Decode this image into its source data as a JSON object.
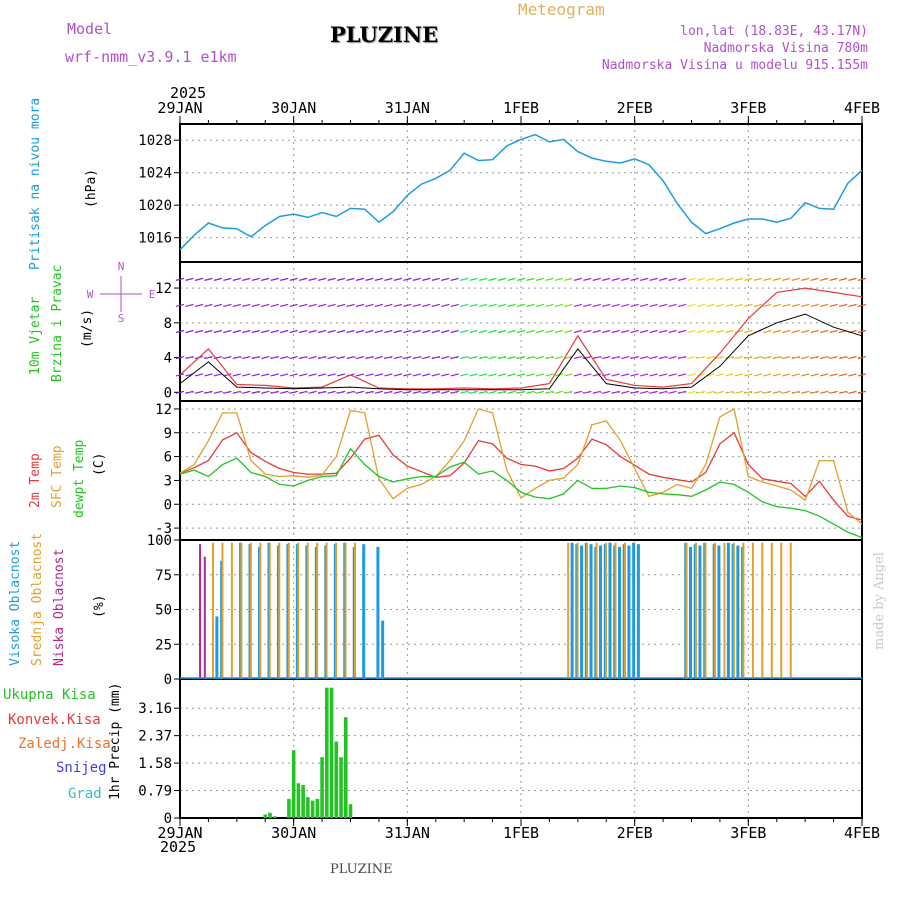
{
  "header": {
    "model_label": "Model",
    "model_name": "wrf-nmm_v3.9.1 e1km",
    "station": "PLUZINE",
    "chart_title": "Meteogram",
    "lonlat": "lon,lat (18.83E, 43.17N)",
    "elevation": "Nadmorska Visina 780m",
    "model_elevation": "Nadmorska Visina u modelu 915.155m",
    "footer_station": "PLUZINE",
    "watermark": "made by Angel"
  },
  "time_axis": {
    "year": "2025",
    "ticks": [
      "29JAN",
      "30JAN",
      "31JAN",
      "1FEB",
      "2FEB",
      "3FEB",
      "4FEB"
    ],
    "range_hours": [
      0,
      144
    ]
  },
  "colors": {
    "pressure": "#1e9be0",
    "temp2m": "#e83a3a",
    "sfc_temp": "#e0a030",
    "dewpt": "#22c422",
    "cloud_high": "#1e9be0",
    "cloud_mid": "#e0a030",
    "cloud_low": "#b0288c",
    "precip_total": "#22c422",
    "wind_label": "#22c422",
    "wind_rose": "#b050d0",
    "wind_speed": "#000000",
    "gust": "#e83a3a"
  },
  "panels": {
    "pressure": {
      "ylabel_1": "Pritisak na nivou mora",
      "ylabel_2": "(hPa)",
      "ticks": [
        "1016",
        "1020",
        "1024",
        "1028"
      ]
    },
    "wind": {
      "ylabel_1": "10m Vjetar",
      "ylabel_2": "Brzina i Pravac",
      "ylabel_3": "(m/s)",
      "ticks": [
        "0",
        "4",
        "8",
        "12"
      ],
      "rose": {
        "n": "N",
        "s": "S",
        "w": "W",
        "e": "E"
      }
    },
    "temperature": {
      "ylabel_1": "2m Temp",
      "ylabel_2": "SFC Temp",
      "ylabel_3": "dewpt Temp",
      "ylabel_4": "(C)",
      "ticks": [
        "-3",
        "0",
        "3",
        "6",
        "9",
        "12"
      ]
    },
    "cloud": {
      "ylabel_1": "Visoka Oblacnost",
      "ylabel_2": "Srednja Oblacnost",
      "ylabel_3": "Niska Oblacnost",
      "ylabel_4": "(%)",
      "ticks": [
        "0",
        "25",
        "50",
        "75",
        "100"
      ]
    },
    "precip": {
      "legend_total": "Ukupna Kisa",
      "legend_conv": "Konvek.Kisa",
      "legend_frozen": "Zaledj.Kisa",
      "legend_snow": "Snijeg",
      "legend_hail": "Grad",
      "ylabel": "1hr Precip (mm)",
      "ticks": [
        "0",
        "0.79",
        "1.58",
        "2.37",
        "3.16"
      ]
    }
  },
  "chart_data": [
    {
      "type": "line",
      "title": "",
      "ylabel": "Pritisak na nivou mora (hPa)",
      "ylim": [
        1013,
        1030
      ],
      "x_hours": [
        0,
        3,
        6,
        9,
        12,
        15,
        18,
        21,
        24,
        27,
        30,
        33,
        36,
        39,
        42,
        45,
        48,
        51,
        54,
        57,
        60,
        63,
        66,
        69,
        72,
        75,
        78,
        81,
        84,
        87,
        90,
        93,
        96,
        99,
        102,
        105,
        108,
        111,
        114,
        117,
        120,
        123,
        126,
        129,
        132,
        135,
        138,
        141,
        144
      ],
      "series": [
        {
          "name": "",
          "values": [
            1014.5,
            1016.3,
            1017.8,
            1017.2,
            1017.1,
            1016.1,
            1017.5,
            1018.6,
            1018.9,
            1018.5,
            1019.1,
            1018.6,
            1019.6,
            1019.5,
            1017.9,
            1019.2,
            1021.2,
            1022.6,
            1023.3,
            1024.3,
            1026.4,
            1025.5,
            1025.6,
            1027.3,
            1028.1,
            1028.7,
            1027.8,
            1028.1,
            1026.6,
            1025.8,
            1025.4,
            1025.2,
            1025.7,
            1025.0,
            1023.0,
            1020.2,
            1017.9,
            1016.5,
            1017.1,
            1017.8,
            1018.3,
            1018.3,
            1017.9,
            1018.4,
            1020.3,
            1019.6,
            1019.5,
            1022.7,
            1024.3
          ]
        }
      ]
    },
    {
      "type": "line",
      "title": "",
      "ylabel": "10m Vjetar Brzina i Pravac (m/s)",
      "ylim": [
        -1,
        15
      ],
      "x_hours": [
        0,
        6,
        12,
        18,
        24,
        30,
        36,
        42,
        48,
        54,
        60,
        66,
        72,
        78,
        84,
        90,
        96,
        102,
        108,
        114,
        120,
        126,
        132,
        138,
        144
      ],
      "series": [
        {
          "name": "",
          "values": [
            1.0,
            3.5,
            0.6,
            0.5,
            0.4,
            0.5,
            0.6,
            0.4,
            0.3,
            0.3,
            0.3,
            0.3,
            0.3,
            0.4,
            5.0,
            1.0,
            0.5,
            0.4,
            0.6,
            3.0,
            6.5,
            8.0,
            9.0,
            7.5,
            6.5
          ]
        },
        {
          "name": "",
          "values": [
            2.0,
            5.0,
            0.9,
            0.8,
            0.5,
            0.6,
            2.0,
            0.5,
            0.4,
            0.4,
            0.5,
            0.4,
            0.5,
            1.0,
            6.5,
            1.5,
            0.8,
            0.6,
            1.0,
            4.5,
            8.5,
            11.5,
            12.0,
            11.5,
            11.0
          ]
        }
      ]
    },
    {
      "type": "line",
      "title": "",
      "ylabel": "(C)",
      "ylim": [
        -4.5,
        13
      ],
      "x_hours": [
        0,
        3,
        6,
        9,
        12,
        15,
        18,
        21,
        24,
        27,
        30,
        33,
        36,
        39,
        42,
        45,
        48,
        51,
        54,
        57,
        60,
        63,
        66,
        69,
        72,
        75,
        78,
        81,
        84,
        87,
        90,
        93,
        96,
        99,
        102,
        105,
        108,
        111,
        114,
        117,
        120,
        123,
        126,
        129,
        132,
        135,
        138,
        141,
        144
      ],
      "series": [
        {
          "name": "2m Temp",
          "values": [
            3.9,
            4.6,
            5.5,
            8.1,
            9.0,
            6.5,
            5.4,
            4.5,
            4.0,
            3.8,
            3.8,
            3.9,
            5.8,
            8.2,
            8.7,
            6.2,
            4.8,
            4.1,
            3.4,
            3.6,
            5.2,
            8.0,
            7.6,
            5.8,
            5.0,
            4.8,
            4.2,
            4.5,
            5.8,
            8.2,
            7.5,
            6.0,
            4.9,
            3.8,
            3.4,
            3.1,
            2.8,
            4.0,
            7.6,
            9.0,
            5.0,
            3.2,
            2.9,
            2.6,
            1.0,
            2.9,
            0.5,
            -1.5,
            -2.0
          ]
        },
        {
          "name": "SFC Temp",
          "values": [
            3.9,
            5.0,
            8.0,
            11.5,
            11.5,
            5.5,
            3.8,
            3.5,
            3.6,
            3.4,
            3.7,
            6.0,
            11.8,
            11.5,
            3.2,
            0.7,
            2.0,
            2.5,
            3.5,
            5.5,
            8.0,
            12.0,
            11.5,
            4.3,
            0.8,
            2.0,
            3.0,
            3.3,
            5.0,
            10.0,
            10.5,
            8.0,
            4.5,
            1.0,
            1.5,
            2.5,
            2.0,
            5.0,
            11.0,
            12.0,
            3.5,
            2.8,
            2.3,
            1.8,
            0.5,
            5.5,
            5.5,
            -1.0,
            -2.5
          ]
        },
        {
          "name": "dewpt Temp",
          "values": [
            3.8,
            4.3,
            3.5,
            5.0,
            5.8,
            4.0,
            3.5,
            2.5,
            2.3,
            3.0,
            3.5,
            3.6,
            7.0,
            5.0,
            3.5,
            2.8,
            3.2,
            3.5,
            3.5,
            4.7,
            5.3,
            3.8,
            4.2,
            3.0,
            1.5,
            0.9,
            0.7,
            1.3,
            3.0,
            2.0,
            2.0,
            2.3,
            2.1,
            1.5,
            1.3,
            1.2,
            1.0,
            1.8,
            2.8,
            2.5,
            1.5,
            0.3,
            -0.3,
            -0.5,
            -0.8,
            -1.5,
            -2.5,
            -3.5,
            -4.2
          ]
        }
      ]
    },
    {
      "type": "bar",
      "title": "",
      "ylabel": "(%)",
      "ylim": [
        0,
        100
      ],
      "x_hours": [
        4,
        5,
        6,
        7,
        8,
        9,
        10,
        11,
        12,
        13,
        14,
        15,
        16,
        17,
        18,
        19,
        20,
        21,
        22,
        23,
        24,
        25,
        26,
        27,
        28,
        29,
        30,
        31,
        32,
        33,
        34,
        35,
        36,
        37,
        38,
        39,
        40,
        41,
        42,
        43,
        44,
        45,
        46,
        47,
        48,
        49,
        50,
        51,
        52,
        53,
        54,
        55,
        56,
        57,
        58,
        59,
        60,
        61,
        62,
        63,
        64,
        65,
        66,
        67,
        68,
        69,
        70,
        71,
        72,
        73,
        74,
        75,
        76,
        77,
        78,
        79,
        80,
        81,
        82,
        83,
        84,
        85,
        86,
        87,
        88,
        89,
        90,
        91,
        92,
        93,
        94,
        95,
        96,
        97,
        98,
        99,
        100,
        101,
        102,
        103,
        104,
        105,
        106,
        107,
        108,
        109,
        110,
        111,
        112,
        113,
        114,
        115,
        116,
        117,
        118,
        119,
        120,
        121,
        122,
        123,
        124,
        125,
        126,
        127,
        128,
        129,
        130,
        131,
        132,
        133,
        134,
        135,
        136,
        137,
        138,
        139,
        140,
        141,
        142,
        143,
        144
      ],
      "series": [
        {
          "name": "Visoka Oblacnost",
          "values": [
            0,
            0,
            0,
            0,
            45,
            85,
            0,
            0,
            0,
            98,
            0,
            97,
            0,
            95,
            0,
            98,
            0,
            96,
            0,
            97,
            0,
            97,
            0,
            96,
            0,
            95,
            0,
            96,
            0,
            97,
            0,
            98,
            0,
            95,
            0,
            97,
            0,
            0,
            95,
            42,
            0,
            0,
            0,
            0,
            0,
            0,
            0,
            0,
            0,
            0,
            0,
            0,
            0,
            0,
            0,
            0,
            0,
            0,
            0,
            0,
            0,
            0,
            0,
            0,
            0,
            0,
            0,
            0,
            0,
            0,
            0,
            0,
            0,
            0,
            0,
            0,
            0,
            0,
            0,
            98,
            97,
            96,
            98,
            97,
            95,
            96,
            97,
            98,
            96,
            95,
            97,
            96,
            98,
            97,
            0,
            0,
            0,
            0,
            0,
            0,
            0,
            0,
            0,
            98,
            95,
            97,
            96,
            98,
            0,
            97,
            96,
            0,
            98,
            97,
            96,
            95,
            0,
            0,
            0,
            0,
            0,
            0,
            0,
            0,
            0,
            0,
            0,
            0,
            0,
            0,
            0,
            0,
            0,
            0,
            0,
            0,
            0,
            0,
            0,
            0,
            0
          ]
        },
        {
          "name": "Srednja Oblacnost",
          "values": [
            0,
            0,
            0,
            98,
            0,
            98,
            0,
            98,
            0,
            98,
            0,
            98,
            0,
            98,
            0,
            98,
            0,
            98,
            0,
            98,
            0,
            98,
            0,
            98,
            0,
            98,
            0,
            98,
            0,
            98,
            0,
            98,
            0,
            98,
            0,
            0,
            0,
            0,
            0,
            0,
            0,
            0,
            0,
            0,
            0,
            0,
            0,
            0,
            0,
            0,
            0,
            0,
            0,
            0,
            0,
            0,
            0,
            0,
            0,
            0,
            0,
            0,
            0,
            0,
            0,
            0,
            0,
            0,
            0,
            0,
            0,
            0,
            0,
            0,
            0,
            0,
            0,
            0,
            98,
            0,
            98,
            0,
            98,
            0,
            98,
            0,
            98,
            0,
            98,
            0,
            98,
            0,
            0,
            0,
            0,
            0,
            0,
            0,
            0,
            0,
            0,
            0,
            0,
            98,
            0,
            98,
            0,
            98,
            0,
            98,
            0,
            98,
            0,
            98,
            0,
            98,
            0,
            98,
            0,
            98,
            0,
            98,
            0,
            98,
            0,
            98,
            0,
            0,
            0,
            0,
            0,
            0,
            0,
            0,
            0,
            0,
            0,
            0,
            0,
            0,
            0
          ]
        },
        {
          "name": "Niska Oblacnost",
          "values": [
            97,
            88,
            0,
            0,
            0,
            0,
            0,
            0,
            0,
            0,
            0,
            0,
            0,
            0,
            0,
            0,
            0,
            0,
            0,
            0,
            0,
            0,
            0,
            0,
            0,
            0,
            0,
            0,
            0,
            0,
            0,
            0,
            0,
            0,
            0,
            0,
            0,
            0,
            0,
            0,
            0,
            0,
            0,
            0,
            0,
            0,
            0,
            0,
            0,
            0,
            0,
            0,
            0,
            0,
            0,
            0,
            0,
            0,
            0,
            0,
            0,
            0,
            0,
            0,
            0,
            0,
            0,
            0,
            0,
            0,
            0,
            0,
            0,
            0,
            0,
            0,
            0,
            0,
            0,
            0,
            0,
            0,
            0,
            0,
            0,
            0,
            0,
            0,
            0,
            0,
            0,
            0,
            0,
            0,
            0,
            0,
            0,
            0,
            0,
            0,
            0,
            0,
            0,
            0,
            0,
            0,
            0,
            0,
            0,
            0,
            0,
            0,
            0,
            0,
            0,
            0,
            0,
            0,
            0,
            0,
            0,
            0,
            0,
            0,
            0,
            0,
            0,
            0,
            0,
            0,
            0,
            0,
            0,
            0,
            0,
            0,
            0,
            0,
            0,
            0,
            0
          ]
        }
      ]
    },
    {
      "type": "bar",
      "title": "",
      "ylabel": "1hr Precip (mm)",
      "ylim": [
        0,
        4.0
      ],
      "x_hours": [
        18,
        19,
        20,
        21,
        22,
        23,
        24,
        25,
        26,
        27,
        28,
        29,
        30,
        31,
        32,
        33,
        34,
        35,
        36
      ],
      "series": [
        {
          "name": "Ukupna Kisa",
          "values": [
            0.1,
            0.15,
            0.05,
            0.0,
            0.0,
            0.55,
            1.95,
            1.0,
            0.95,
            0.6,
            0.5,
            0.55,
            1.75,
            3.75,
            3.75,
            2.2,
            1.75,
            2.9,
            0.4
          ]
        }
      ]
    }
  ]
}
